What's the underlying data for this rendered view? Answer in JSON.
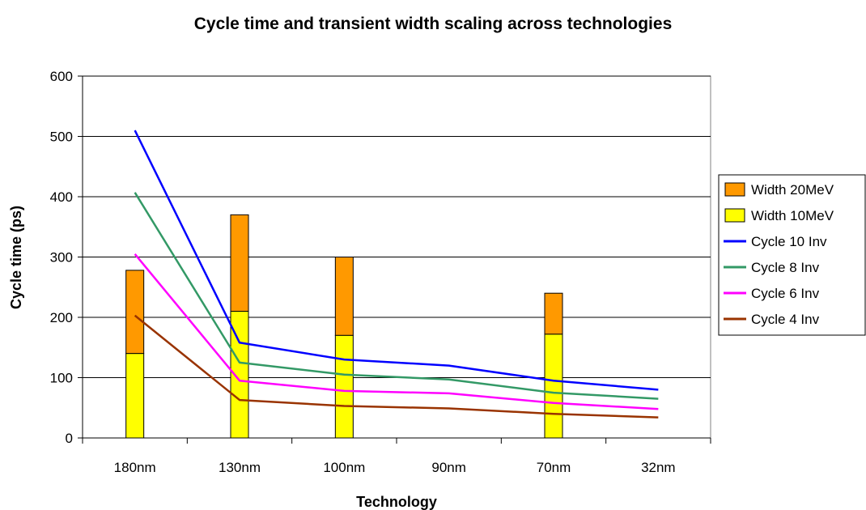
{
  "chart_data": {
    "type": "bar",
    "title": "Cycle time and transient width scaling across technologies",
    "xlabel": "Technology",
    "ylabel": "Cycle time (ps)",
    "ylim": [
      0,
      600
    ],
    "yticks": [
      0,
      100,
      200,
      300,
      400,
      500,
      600
    ],
    "grid": true,
    "legend_position": "right",
    "categories": [
      "180nm",
      "130nm",
      "100nm",
      "90nm",
      "70nm",
      "32nm"
    ],
    "bar_series": [
      {
        "name": "Width 20MeV",
        "color": "#ff9900",
        "values": [
          278,
          370,
          300,
          null,
          240,
          null
        ]
      },
      {
        "name": "Width 10MeV",
        "color": "#ffff00",
        "values": [
          140,
          210,
          170,
          null,
          172,
          null
        ]
      }
    ],
    "line_series": [
      {
        "name": "Cycle 10 Inv",
        "color": "#0000ff",
        "values": [
          510,
          158,
          130,
          120,
          95,
          80
        ]
      },
      {
        "name": "Cycle 8 Inv",
        "color": "#339966",
        "values": [
          407,
          125,
          105,
          97,
          75,
          65
        ]
      },
      {
        "name": "Cycle 6 Inv",
        "color": "#ff00ff",
        "values": [
          305,
          95,
          78,
          74,
          58,
          48
        ]
      },
      {
        "name": "Cycle 4 Inv",
        "color": "#993300",
        "values": [
          203,
          63,
          53,
          49,
          40,
          34
        ]
      }
    ]
  }
}
